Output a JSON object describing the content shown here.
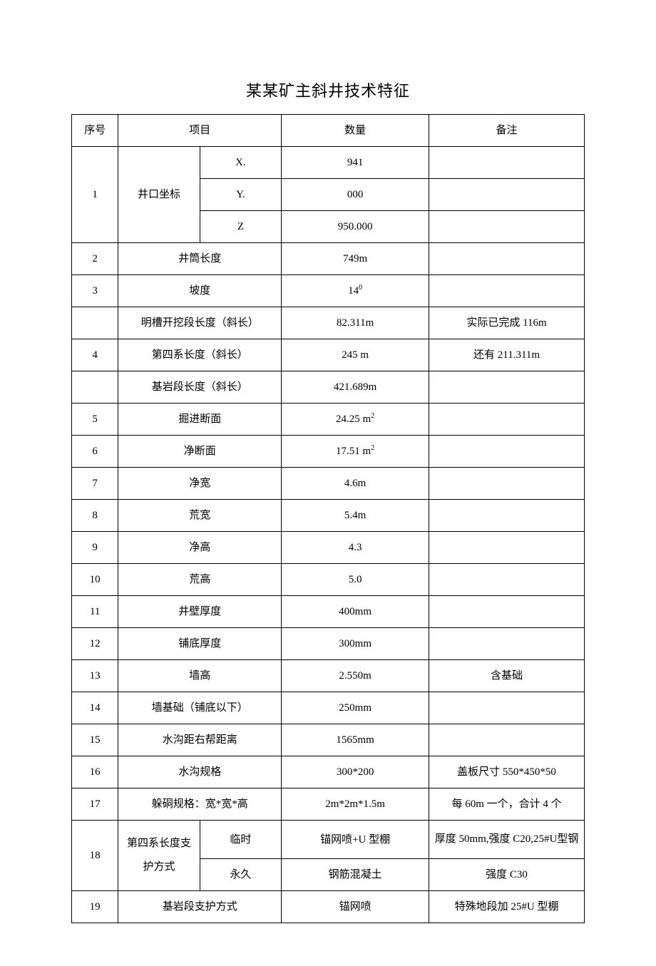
{
  "title": "某某矿主斜井技术特征",
  "headers": {
    "seq": "序号",
    "item": "项目",
    "qty": "数量",
    "note": "备注"
  },
  "rows": {
    "r1": {
      "seq": "1",
      "item": "井口坐标",
      "sub_x": "X.",
      "val_x": "941",
      "sub_y": "Y.",
      "val_y": "000",
      "sub_z": "Z",
      "val_z": "950.000"
    },
    "r2": {
      "seq": "2",
      "item": "井筒长度",
      "qty": "749m",
      "note": ""
    },
    "r3": {
      "seq": "3",
      "item": "坡度",
      "qty_base": "14",
      "qty_sup": "0",
      "note": ""
    },
    "r3b": {
      "seq": "",
      "item": "明槽开挖段长度（斜长）",
      "qty": "82.311m",
      "note": "实际已完成 116m"
    },
    "r4": {
      "seq": "4",
      "item": "第四系长度（斜长）",
      "qty": "245 m",
      "note": "还有 211.311m"
    },
    "r4b": {
      "seq": "",
      "item": "基岩段长度（斜长）",
      "qty": "421.689m",
      "note": ""
    },
    "r5": {
      "seq": "5",
      "item": "掘进断面",
      "qty_base": "24.25 m",
      "qty_sup": "2",
      "note": ""
    },
    "r6": {
      "seq": "6",
      "item": "净断面",
      "qty_base": "17.51 m",
      "qty_sup": "2",
      "note": ""
    },
    "r7": {
      "seq": "7",
      "item": "净宽",
      "qty": "4.6m",
      "note": ""
    },
    "r8": {
      "seq": "8",
      "item": "荒宽",
      "qty": "5.4m",
      "note": ""
    },
    "r9": {
      "seq": "9",
      "item": "净高",
      "qty": "4.3",
      "note": ""
    },
    "r10": {
      "seq": "10",
      "item": "荒高",
      "qty": "5.0",
      "note": ""
    },
    "r11": {
      "seq": "11",
      "item": "井壁厚度",
      "qty": "400mm",
      "note": ""
    },
    "r12": {
      "seq": "12",
      "item": "铺底厚度",
      "qty": "300mm",
      "note": ""
    },
    "r13": {
      "seq": "13",
      "item": "墙高",
      "qty": "2.550m",
      "note": "含基础"
    },
    "r14": {
      "seq": "14",
      "item": "墙基础（铺底以下）",
      "qty": "250mm",
      "note": ""
    },
    "r15": {
      "seq": "15",
      "item": "水沟距右帮距离",
      "qty": "1565mm",
      "note": ""
    },
    "r16": {
      "seq": "16",
      "item": "水沟规格",
      "qty": "300*200",
      "note": "盖板尺寸 550*450*50"
    },
    "r17": {
      "seq": "17",
      "item": "躲硐规格：宽*宽*高",
      "qty": "2m*2m*1.5m",
      "note": "每 60m 一个，合计 4 个"
    },
    "r18": {
      "seq": "18",
      "item": "第四系长度支护方式",
      "sub_tmp": "临时",
      "qty_tmp": "锚网喷+U 型棚",
      "note_tmp": "厚度 50mm,强度 C20,25#U型钢",
      "sub_perm": "永久",
      "qty_perm": "钢筋混凝土",
      "note_perm": "强度 C30"
    },
    "r19": {
      "seq": "19",
      "item": "基岩段支护方式",
      "qty": "锚网喷",
      "note": "特殊地段加 25#U 型棚"
    }
  },
  "style": {
    "border_color": "#000000",
    "background_color": "#ffffff",
    "text_color": "#000000",
    "title_fontsize": 22,
    "cell_fontsize": 15,
    "col_widths": {
      "seq": 60,
      "item": 210,
      "sub": 60,
      "qty": 190,
      "note": 200
    }
  }
}
